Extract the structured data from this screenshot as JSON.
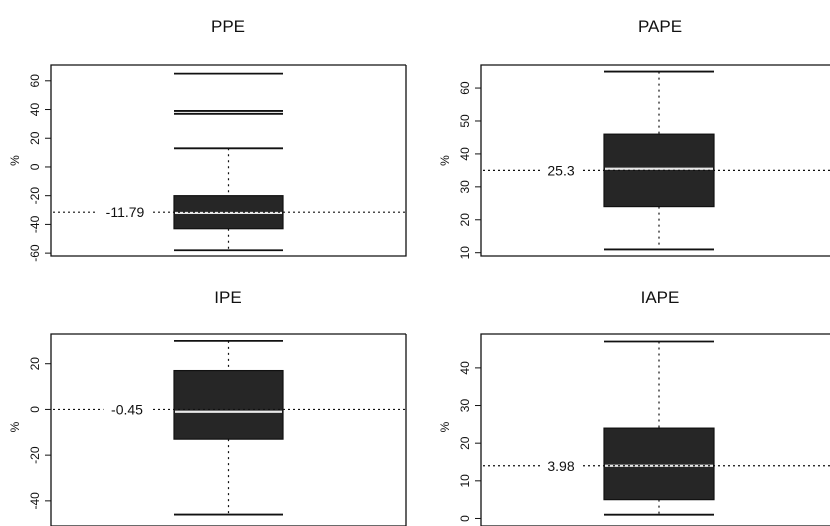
{
  "chart_data": [
    {
      "type": "box",
      "title": "PPE",
      "ylabel": "%",
      "yticks": [
        -60,
        -40,
        -20,
        0,
        20,
        40,
        60
      ],
      "ylim": [
        -62,
        71
      ],
      "box": {
        "lower_whisker": -58,
        "q1": -43,
        "median": -32,
        "q3": -20,
        "upper_whisker": 13
      },
      "outliers": [
        37,
        39,
        65
      ],
      "reference_line": -31.5,
      "reference_label": "-11.79"
    },
    {
      "type": "box",
      "title": "PAPE",
      "ylabel": "%",
      "yticks": [
        10,
        20,
        30,
        40,
        50,
        60
      ],
      "ylim": [
        9,
        67
      ],
      "box": {
        "lower_whisker": 11,
        "q1": 24,
        "median": 35.5,
        "q3": 46,
        "upper_whisker": 65
      },
      "outliers": [],
      "reference_line": 35,
      "reference_label": "25.3"
    },
    {
      "type": "box",
      "title": "IPE",
      "ylabel": "%",
      "yticks": [
        -40,
        -20,
        0,
        20
      ],
      "ylim": [
        -51,
        33
      ],
      "box": {
        "lower_whisker": -46,
        "q1": -13,
        "median": -1,
        "q3": 17,
        "upper_whisker": 30
      },
      "outliers": [],
      "reference_line": 0,
      "reference_label": "-0.45"
    },
    {
      "type": "box",
      "title": "IAPE",
      "ylabel": "%",
      "yticks": [
        0,
        10,
        20,
        30,
        40
      ],
      "ylim": [
        -2,
        49
      ],
      "box": {
        "lower_whisker": 1,
        "q1": 5,
        "median": 14,
        "q3": 24,
        "upper_whisker": 47
      },
      "outliers": [],
      "reference_line": 14,
      "reference_label": "3.98"
    }
  ]
}
